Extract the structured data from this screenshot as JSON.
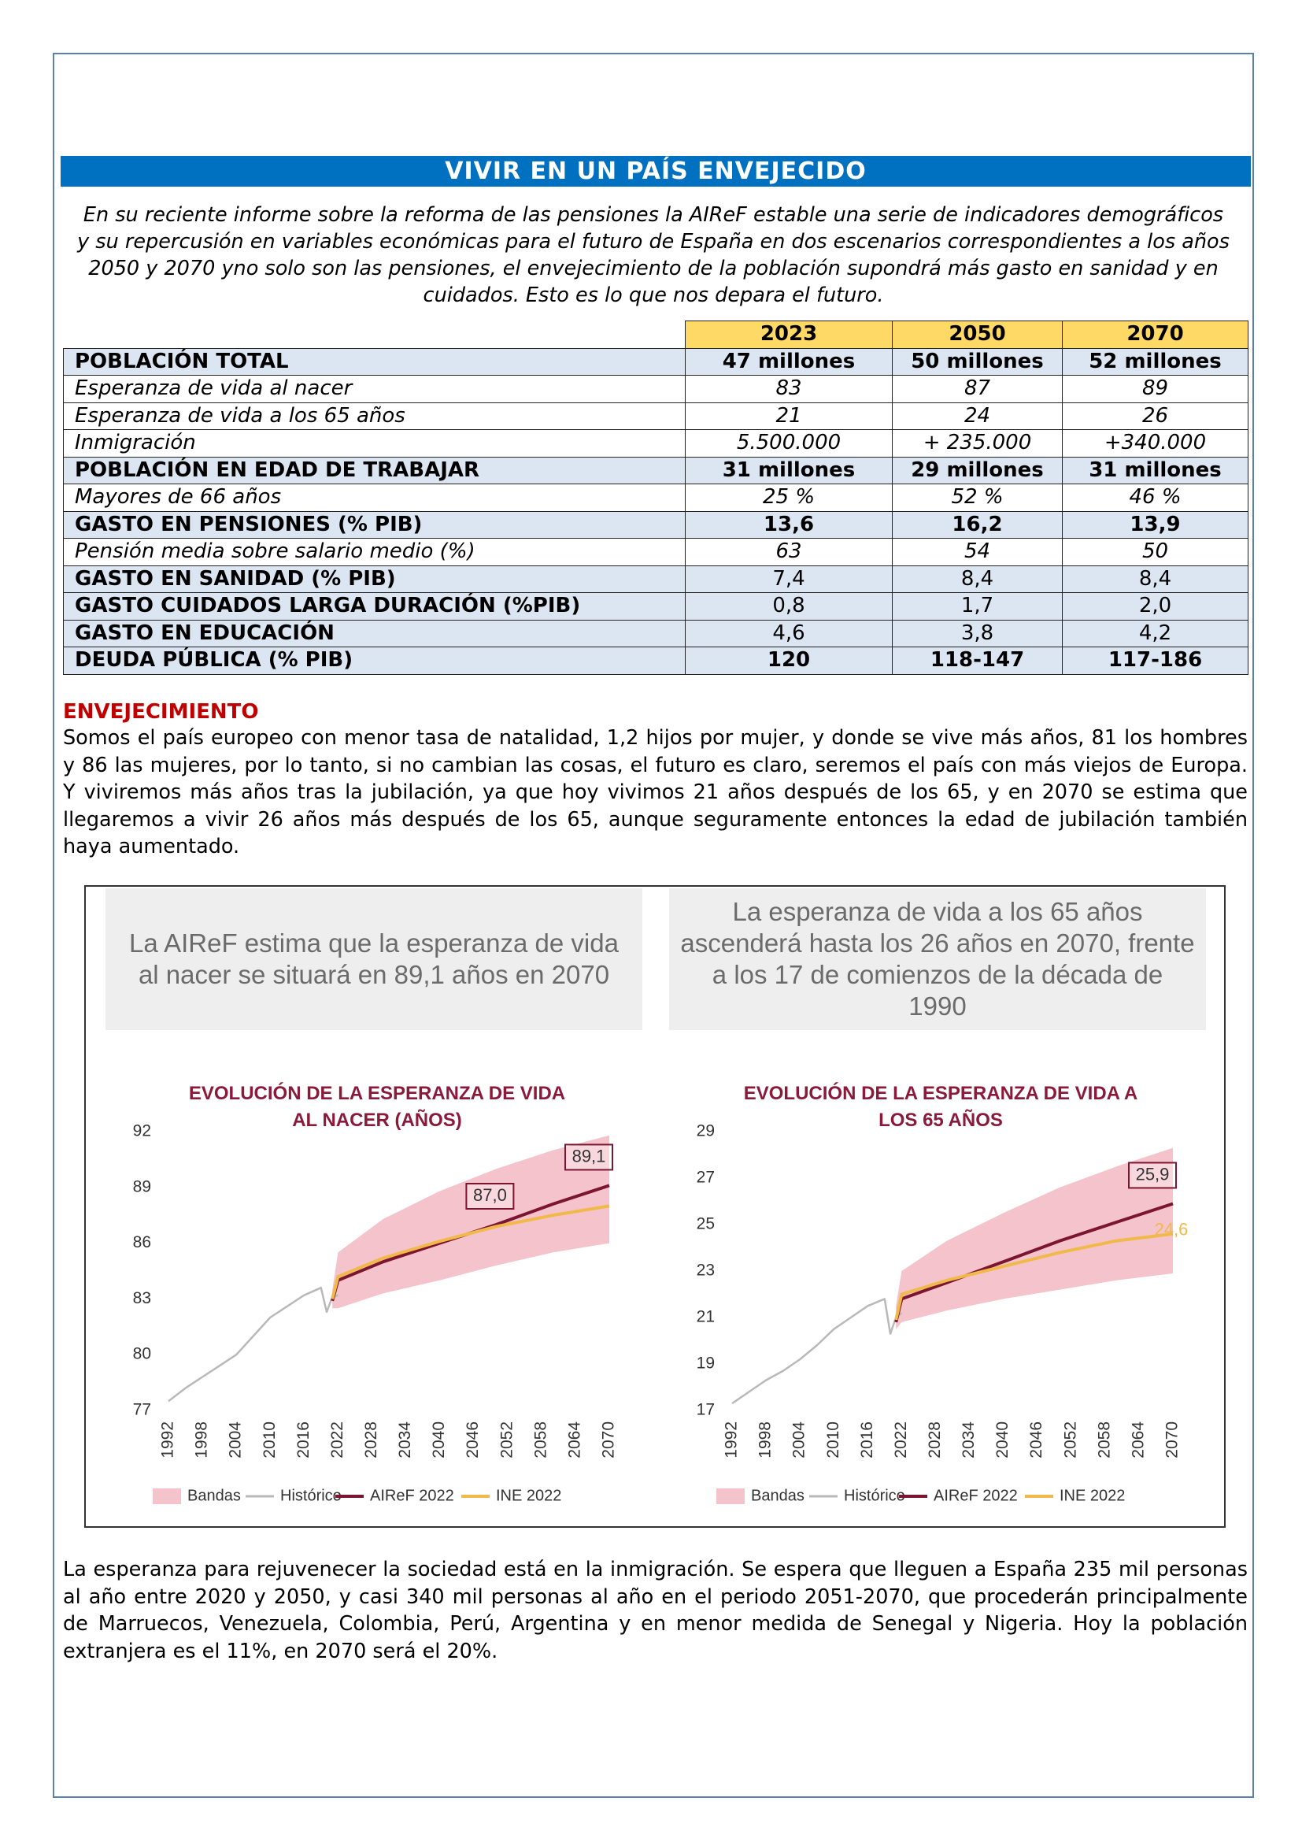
{
  "title": "VIVIR EN UN PAÍS ENVEJECIDO",
  "intro": "En su reciente informe sobre la reforma de las pensiones la AIReF estable una serie de indicadores demográficos y su repercusión en variables económicas para el futuro de España en dos escenarios correspondientes a los años 2050 y 2070 yno solo son las pensiones, el envejecimiento de la población supondrá más gasto en sanidad y en cuidados. Esto es lo que nos depara el futuro.",
  "table": {
    "columns": [
      "2023",
      "2050",
      "2070"
    ],
    "rows": [
      [
        "POBLACIÓN TOTAL",
        "47 millones",
        "50 millones",
        "52 millones"
      ],
      [
        "Esperanza de vida al nacer",
        "83",
        "87",
        "89"
      ],
      [
        "Esperanza de vida a los 65 años",
        "21",
        "24",
        "26"
      ],
      [
        "Inmigración",
        "5.500.000",
        "+ 235.000",
        "+340.000"
      ],
      [
        "POBLACIÓN EN EDAD DE TRABAJAR",
        "31 millones",
        "29 millones",
        "31 millones"
      ],
      [
        "Mayores de 66 años",
        "25 %",
        "52 %",
        "46 %"
      ],
      [
        "GASTO EN PENSIONES (% PIB)",
        "13,6",
        "16,2",
        "13,9"
      ],
      [
        "Pensión media sobre salario medio (%)",
        "63",
        "54",
        "50"
      ],
      [
        "GASTO EN SANIDAD (% PIB)",
        "7,4",
        "8,4",
        "8,4"
      ],
      [
        "GASTO CUIDADOS LARGA DURACIÓN (%PIB)",
        "0,8",
        "1,7",
        "2,0"
      ],
      [
        "GASTO EN EDUCACIÓN",
        "4,6",
        "3,8",
        "4,2"
      ],
      [
        "DEUDA PÚBLICA (% PIB)",
        "120",
        "118-147",
        "117-186"
      ]
    ]
  },
  "section_title": "ENVEJECIMIENTO",
  "paragraphs": [
    "Somos el país europeo con menor tasa de natalidad, 1,2 hijos por mujer, y donde se vive más años, 81 los hombres y 86 las mujeres, por lo tanto, si no cambian las cosas, el futuro es claro, seremos el país con más viejos de Europa.  Y viviremos más años tras la jubilación, ya que hoy vivimos 21 años después de los 65, y en 2070 se estima que llegaremos a vivir 26 años más después de los 65, aunque seguramente entonces la edad de jubilación también haya aumentado.",
    "La esperanza para rejuvenecer la sociedad está en la inmigración. Se espera que lleguen a España 235 mil personas al año entre 2020 y 2050, y casi 340 mil personas al año en el periodo 2051-2070, que procederán principalmente de Marruecos, Venezuela, Colombia, Perú, Argentina y en menor medida de Senegal y Nigeria.  Hoy la población extranjera es el 11%, en 2070 será el 20%."
  ],
  "chart_data": [
    {
      "type": "line",
      "headline": "La AIReF estima que la esperanza de vida al nacer se situará en 89,1 años en 2070",
      "title": "EVOLUCIÓN DE LA ESPERANZA DE VIDA AL NACER (AÑOS)",
      "x": [
        1992,
        1995,
        1998,
        2001,
        2004,
        2007,
        2010,
        2013,
        2016,
        2019,
        2020,
        2021,
        2022,
        2030,
        2040,
        2050,
        2060,
        2070
      ],
      "xlim": [
        1992,
        2070
      ],
      "xticks": [
        1992,
        1998,
        2004,
        2010,
        2016,
        2022,
        2028,
        2034,
        2040,
        2046,
        2052,
        2058,
        2064,
        2070
      ],
      "ylim": [
        77,
        92
      ],
      "yticks": [
        77,
        80,
        83,
        86,
        89,
        92
      ],
      "band": {
        "name": "Bandas",
        "color": "#f4c3cb",
        "lower": [
          null,
          null,
          null,
          null,
          null,
          null,
          null,
          null,
          null,
          null,
          null,
          82.5,
          82.5,
          83.3,
          84.0,
          84.8,
          85.5,
          86.0
        ],
        "upper": [
          null,
          null,
          null,
          null,
          null,
          null,
          null,
          null,
          null,
          null,
          null,
          83.5,
          85.5,
          87.3,
          88.8,
          90.0,
          91.0,
          91.8
        ]
      },
      "series": [
        {
          "name": "Histórico",
          "color": "#b9b9b9",
          "values": [
            77.5,
            78.2,
            78.8,
            79.4,
            80.0,
            81.0,
            82.0,
            82.6,
            83.2,
            83.6,
            82.3,
            83.1,
            83.2,
            null,
            null,
            null,
            null,
            null
          ]
        },
        {
          "name": "AIReF 2022",
          "color": "#7b1530",
          "values": [
            null,
            null,
            null,
            null,
            null,
            null,
            null,
            null,
            null,
            null,
            null,
            82.9,
            84.0,
            85.0,
            86.0,
            87.0,
            88.1,
            89.1
          ],
          "value_labels": [
            null,
            null,
            null,
            null,
            null,
            null,
            null,
            null,
            null,
            null,
            null,
            null,
            null,
            null,
            null,
            "87,0",
            null,
            "89,1"
          ]
        },
        {
          "name": "INE 2022",
          "color": "#f0b94a",
          "values": [
            null,
            null,
            null,
            null,
            null,
            null,
            null,
            null,
            null,
            null,
            null,
            83.0,
            84.2,
            85.2,
            86.1,
            86.9,
            87.5,
            88.0
          ]
        }
      ]
    },
    {
      "type": "line",
      "headline": "La esperanza de vida a los 65 años ascenderá hasta los 26 años en 2070, frente a los 17 de comienzos de la década de 1990",
      "title": "EVOLUCIÓN DE LA ESPERANZA DE VIDA A LOS 65 AÑOS",
      "x": [
        1992,
        1995,
        1998,
        2001,
        2004,
        2007,
        2010,
        2013,
        2016,
        2019,
        2020,
        2021,
        2022,
        2030,
        2040,
        2050,
        2060,
        2070
      ],
      "xlim": [
        1992,
        2070
      ],
      "xticks": [
        1992,
        1998,
        2004,
        2010,
        2016,
        2022,
        2028,
        2034,
        2040,
        2046,
        2052,
        2058,
        2064,
        2070
      ],
      "ylim": [
        17,
        29
      ],
      "yticks": [
        17,
        19,
        21,
        23,
        25,
        27,
        29
      ],
      "band": {
        "name": "Bandas",
        "color": "#f4c3cb",
        "lower": [
          null,
          null,
          null,
          null,
          null,
          null,
          null,
          null,
          null,
          null,
          null,
          20.5,
          20.8,
          21.3,
          21.8,
          22.2,
          22.6,
          22.9
        ],
        "upper": [
          null,
          null,
          null,
          null,
          null,
          null,
          null,
          null,
          null,
          null,
          null,
          21.5,
          23.0,
          24.3,
          25.5,
          26.6,
          27.5,
          28.3
        ]
      },
      "series": [
        {
          "name": "Histórico",
          "color": "#b9b9b9",
          "values": [
            17.3,
            17.8,
            18.3,
            18.7,
            19.2,
            19.8,
            20.5,
            21.0,
            21.5,
            21.8,
            20.3,
            21.0,
            21.2,
            null,
            null,
            null,
            null,
            null
          ]
        },
        {
          "name": "AIReF 2022",
          "color": "#7b1530",
          "values": [
            null,
            null,
            null,
            null,
            null,
            null,
            null,
            null,
            null,
            null,
            null,
            20.8,
            21.8,
            22.5,
            23.4,
            24.3,
            25.1,
            25.9
          ],
          "value_labels": [
            null,
            null,
            null,
            null,
            null,
            null,
            null,
            null,
            null,
            null,
            null,
            null,
            null,
            null,
            null,
            null,
            null,
            "25,9"
          ]
        },
        {
          "name": "INE 2022",
          "color": "#f0b94a",
          "values": [
            null,
            null,
            null,
            null,
            null,
            null,
            null,
            null,
            null,
            null,
            null,
            20.9,
            22.0,
            22.6,
            23.2,
            23.8,
            24.3,
            24.6
          ],
          "value_labels": [
            null,
            null,
            null,
            null,
            null,
            null,
            null,
            null,
            null,
            null,
            null,
            null,
            null,
            null,
            null,
            null,
            null,
            "24,6"
          ]
        }
      ]
    }
  ]
}
